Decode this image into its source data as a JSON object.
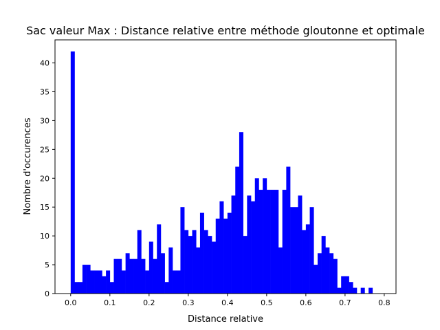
{
  "chart_data": {
    "type": "bar",
    "title": "Sac valeur Max : Distance relative entre méthode gloutonne et optimale",
    "xlabel": "Distance relative",
    "ylabel": "Nombre d'occurences",
    "xlim": [
      -0.04,
      0.83
    ],
    "ylim": [
      0,
      44
    ],
    "xticks": [
      "0.0",
      "0.1",
      "0.2",
      "0.3",
      "0.4",
      "0.5",
      "0.6",
      "0.7",
      "0.8"
    ],
    "yticks": [
      "0",
      "5",
      "10",
      "15",
      "20",
      "25",
      "30",
      "35",
      "40"
    ],
    "bin_width": 0.01,
    "bin_starts": [
      0.0,
      0.01,
      0.02,
      0.03,
      0.04,
      0.05,
      0.06,
      0.07,
      0.08,
      0.09,
      0.1,
      0.11,
      0.12,
      0.13,
      0.14,
      0.15,
      0.16,
      0.17,
      0.18,
      0.19,
      0.2,
      0.21,
      0.22,
      0.23,
      0.24,
      0.25,
      0.26,
      0.27,
      0.28,
      0.29,
      0.3,
      0.31,
      0.32,
      0.33,
      0.34,
      0.35,
      0.36,
      0.37,
      0.38,
      0.39,
      0.4,
      0.41,
      0.42,
      0.43,
      0.44,
      0.45,
      0.46,
      0.47,
      0.48,
      0.49,
      0.5,
      0.51,
      0.52,
      0.53,
      0.54,
      0.55,
      0.56,
      0.57,
      0.58,
      0.59,
      0.6,
      0.61,
      0.62,
      0.63,
      0.64,
      0.65,
      0.66,
      0.67,
      0.68,
      0.69,
      0.7,
      0.71,
      0.72,
      0.73,
      0.74,
      0.75,
      0.76,
      0.77,
      0.78
    ],
    "values": [
      42,
      2,
      2,
      5,
      5,
      4,
      4,
      4,
      3,
      4,
      2,
      6,
      6,
      4,
      7,
      6,
      6,
      11,
      6,
      4,
      9,
      6,
      12,
      7,
      2,
      8,
      4,
      4,
      15,
      11,
      10,
      11,
      8,
      14,
      11,
      10,
      9,
      13,
      16,
      13,
      14,
      17,
      22,
      28,
      10,
      17,
      16,
      20,
      18,
      20,
      18,
      18,
      18,
      8,
      18,
      22,
      15,
      15,
      17,
      11,
      12,
      15,
      5,
      7,
      10,
      8,
      7,
      6,
      1,
      3,
      3,
      2,
      1,
      0,
      1,
      0,
      1,
      0,
      0
    ],
    "bar_color": "#0000ff",
    "grid": false
  }
}
